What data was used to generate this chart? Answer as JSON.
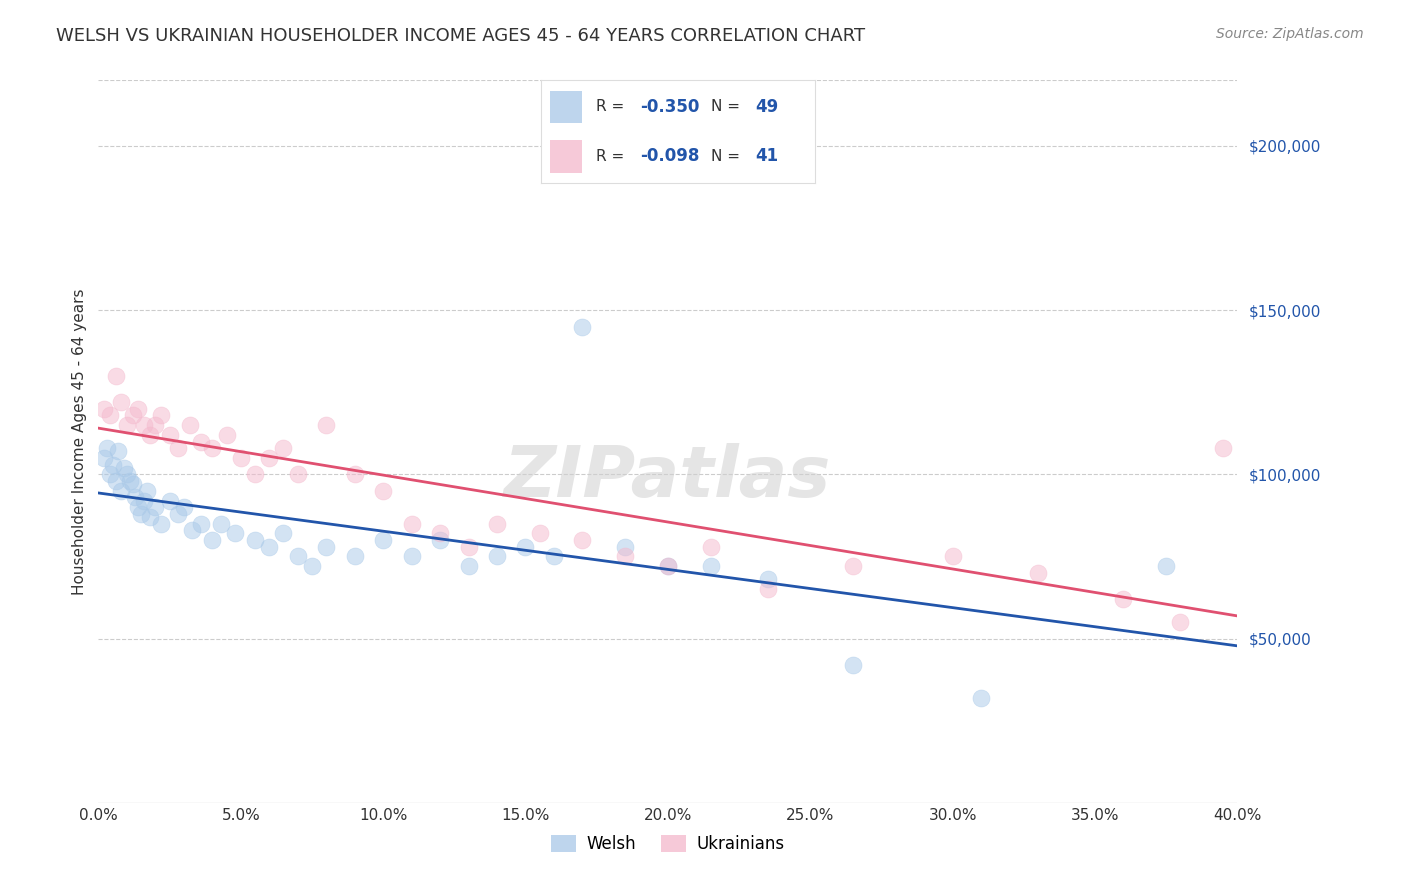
{
  "title": "WELSH VS UKRAINIAN HOUSEHOLDER INCOME AGES 45 - 64 YEARS CORRELATION CHART",
  "source": "Source: ZipAtlas.com",
  "ylabel": "Householder Income Ages 45 - 64 years",
  "xlim": [
    0.0,
    0.4
  ],
  "ylim": [
    0,
    220000
  ],
  "xticks": [
    0.0,
    0.05,
    0.1,
    0.15,
    0.2,
    0.25,
    0.3,
    0.35,
    0.4
  ],
  "yticks_right": [
    50000,
    100000,
    150000,
    200000
  ],
  "grid_color": "#cccccc",
  "background_color": "#ffffff",
  "welsh_color": "#a8c8e8",
  "ukrainian_color": "#f4b8cc",
  "trend_welsh_color": "#2255aa",
  "trend_ukrainian_color": "#e05070",
  "welsh_R": -0.35,
  "welsh_N": 49,
  "ukrainian_R": -0.098,
  "ukrainian_N": 41,
  "welsh_x": [
    0.002,
    0.003,
    0.004,
    0.005,
    0.006,
    0.007,
    0.008,
    0.009,
    0.01,
    0.011,
    0.012,
    0.013,
    0.014,
    0.015,
    0.016,
    0.017,
    0.018,
    0.02,
    0.022,
    0.025,
    0.028,
    0.03,
    0.033,
    0.036,
    0.04,
    0.043,
    0.048,
    0.055,
    0.06,
    0.065,
    0.07,
    0.075,
    0.08,
    0.09,
    0.1,
    0.11,
    0.12,
    0.13,
    0.14,
    0.15,
    0.16,
    0.17,
    0.185,
    0.2,
    0.215,
    0.235,
    0.265,
    0.31,
    0.375
  ],
  "welsh_y": [
    105000,
    108000,
    100000,
    103000,
    98000,
    107000,
    95000,
    102000,
    100000,
    98000,
    97000,
    93000,
    90000,
    88000,
    92000,
    95000,
    87000,
    90000,
    85000,
    92000,
    88000,
    90000,
    83000,
    85000,
    80000,
    85000,
    82000,
    80000,
    78000,
    82000,
    75000,
    72000,
    78000,
    75000,
    80000,
    75000,
    80000,
    72000,
    75000,
    78000,
    75000,
    145000,
    78000,
    72000,
    72000,
    68000,
    42000,
    32000,
    72000
  ],
  "ukrainian_x": [
    0.002,
    0.004,
    0.006,
    0.008,
    0.01,
    0.012,
    0.014,
    0.016,
    0.018,
    0.02,
    0.022,
    0.025,
    0.028,
    0.032,
    0.036,
    0.04,
    0.045,
    0.05,
    0.055,
    0.06,
    0.065,
    0.07,
    0.08,
    0.09,
    0.1,
    0.11,
    0.12,
    0.13,
    0.14,
    0.155,
    0.17,
    0.185,
    0.2,
    0.215,
    0.235,
    0.265,
    0.3,
    0.33,
    0.36,
    0.38,
    0.395
  ],
  "ukrainian_y": [
    120000,
    118000,
    130000,
    122000,
    115000,
    118000,
    120000,
    115000,
    112000,
    115000,
    118000,
    112000,
    108000,
    115000,
    110000,
    108000,
    112000,
    105000,
    100000,
    105000,
    108000,
    100000,
    115000,
    100000,
    95000,
    85000,
    82000,
    78000,
    85000,
    82000,
    80000,
    75000,
    72000,
    78000,
    65000,
    72000,
    75000,
    70000,
    62000,
    55000,
    108000
  ],
  "marker_size": 150,
  "marker_alpha": 0.5,
  "title_fontsize": 13,
  "axis_label_fontsize": 11,
  "tick_fontsize": 11,
  "legend_fontsize": 12,
  "source_fontsize": 10,
  "watermark_text": "ZIPatlas",
  "watermark_fontsize": 52,
  "watermark_color": "#d0d0d0",
  "watermark_alpha": 0.55
}
